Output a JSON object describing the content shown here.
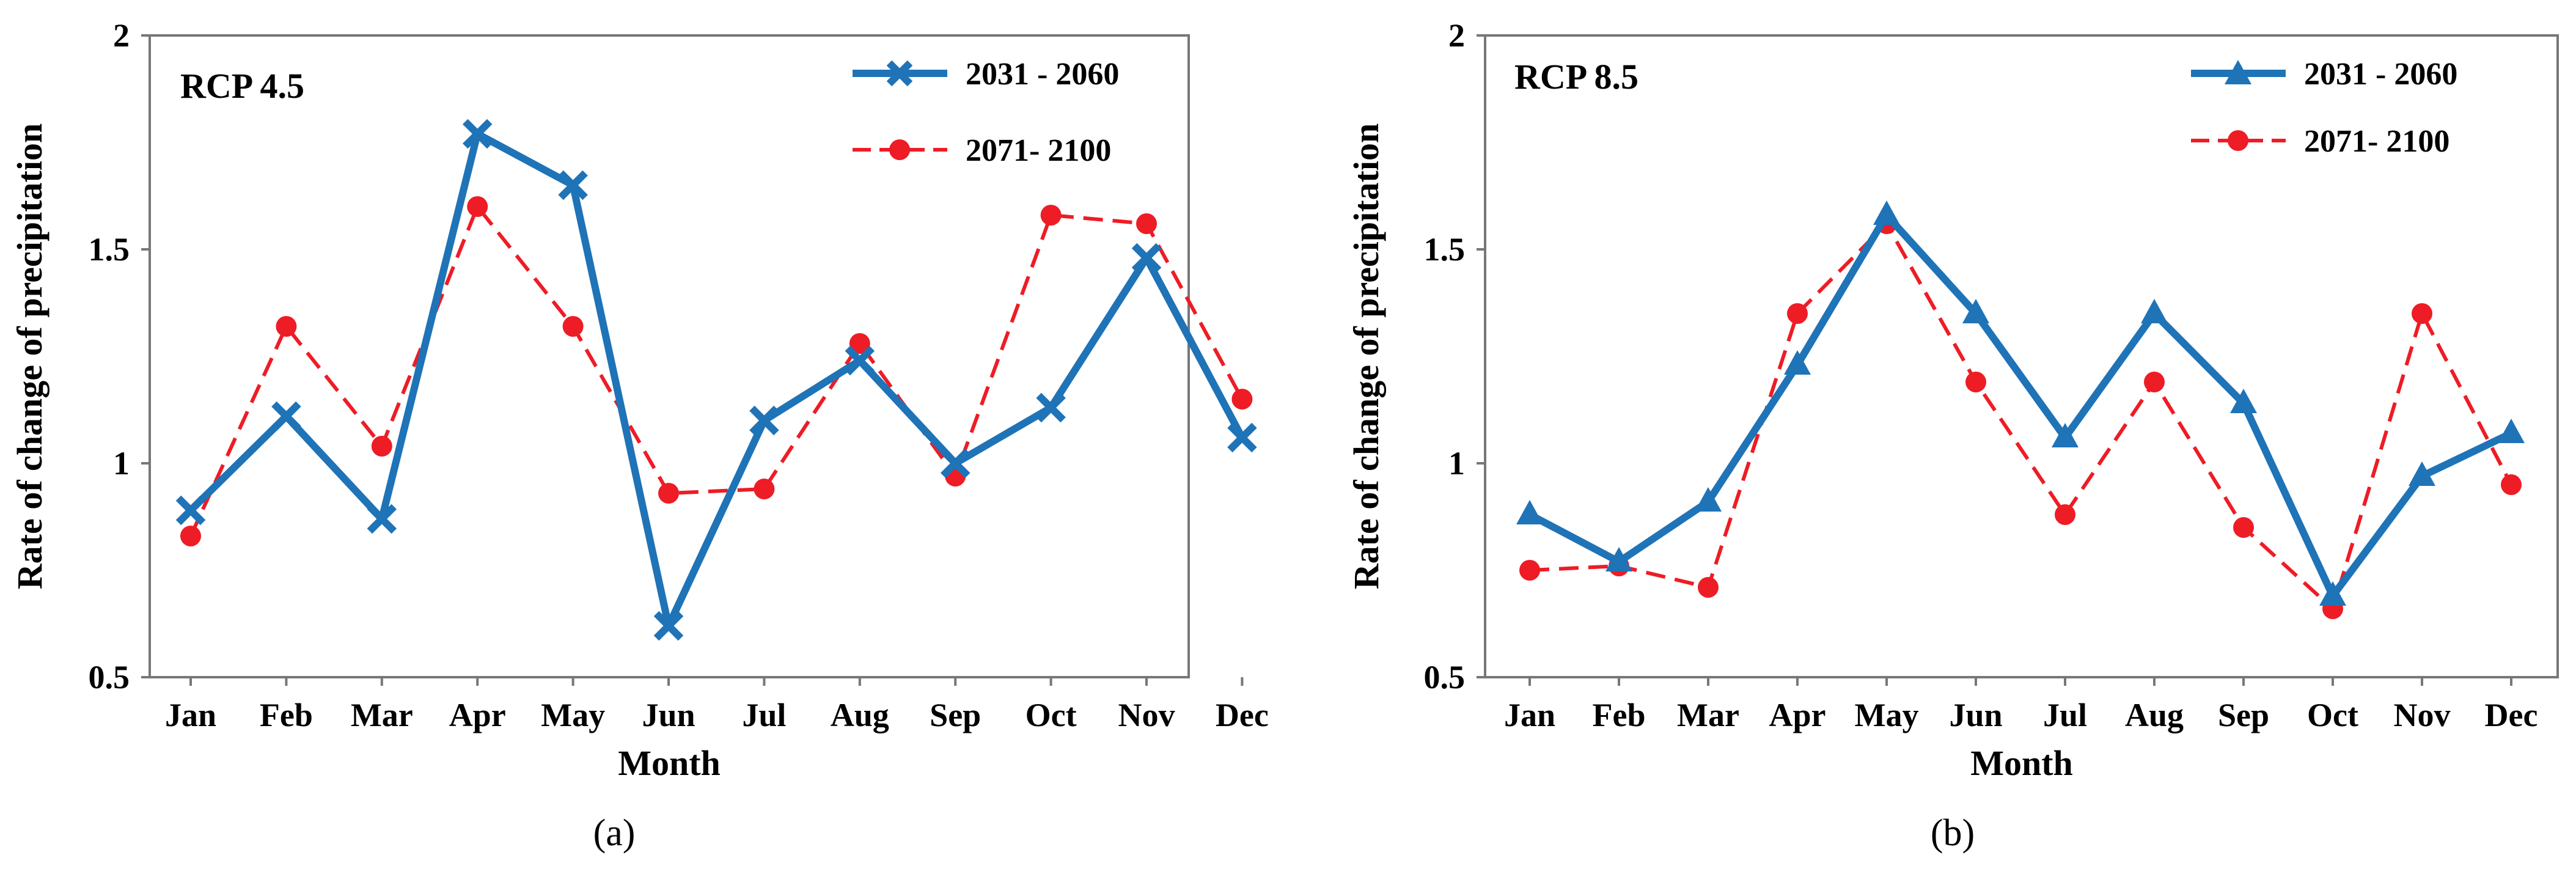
{
  "chart_data": [
    {
      "type": "line",
      "panel_label": "(a)",
      "title": "RCP 4.5",
      "xlabel": "Month",
      "ylabel": "Rate of change of precipitation",
      "categories": [
        "Jan",
        "Feb",
        "Mar",
        "Apr",
        "May",
        "Jun",
        "Jul",
        "Aug",
        "Sep",
        "Oct",
        "Nov",
        "Dec"
      ],
      "ylim": [
        0.5,
        2
      ],
      "yticks": [
        "0.5",
        "1",
        "1.5",
        "2"
      ],
      "legend_position": "top-right",
      "series": [
        {
          "name": "2031 - 2060",
          "color": "#1f73b7",
          "marker": "x",
          "dash": "solid",
          "values": [
            0.89,
            1.11,
            0.87,
            1.77,
            1.65,
            0.62,
            1.1,
            1.24,
            1.0,
            1.13,
            1.48,
            1.06
          ]
        },
        {
          "name": "2071- 2100",
          "color": "#ee1c25",
          "marker": "circle",
          "dash": "dashed",
          "values": [
            0.83,
            1.32,
            1.04,
            1.6,
            1.32,
            0.93,
            0.94,
            1.28,
            0.97,
            1.58,
            1.56,
            1.15
          ]
        }
      ]
    },
    {
      "type": "line",
      "panel_label": "(b)",
      "title": "RCP 8.5",
      "xlabel": "Month",
      "ylabel": "Rate of change of precipitation",
      "categories": [
        "Jan",
        "Feb",
        "Mar",
        "Apr",
        "May",
        "Jun",
        "Jul",
        "Aug",
        "Sep",
        "Oct",
        "Nov",
        "Dec"
      ],
      "ylim": [
        0.5,
        2
      ],
      "yticks": [
        "0.5",
        "1",
        "1.5",
        "2"
      ],
      "legend_position": "top-right",
      "series": [
        {
          "name": "2031 - 2060",
          "color": "#1f73b7",
          "marker": "triangle",
          "dash": "solid",
          "values": [
            0.88,
            0.77,
            0.91,
            1.23,
            1.58,
            1.35,
            1.06,
            1.35,
            1.14,
            0.69,
            0.97,
            1.07
          ]
        },
        {
          "name": "2071- 2100",
          "color": "#ee1c25",
          "marker": "circle",
          "dash": "dashed",
          "values": [
            0.75,
            0.76,
            0.71,
            1.35,
            1.56,
            1.19,
            0.88,
            1.19,
            0.85,
            0.66,
            1.35,
            0.95
          ]
        }
      ]
    }
  ]
}
